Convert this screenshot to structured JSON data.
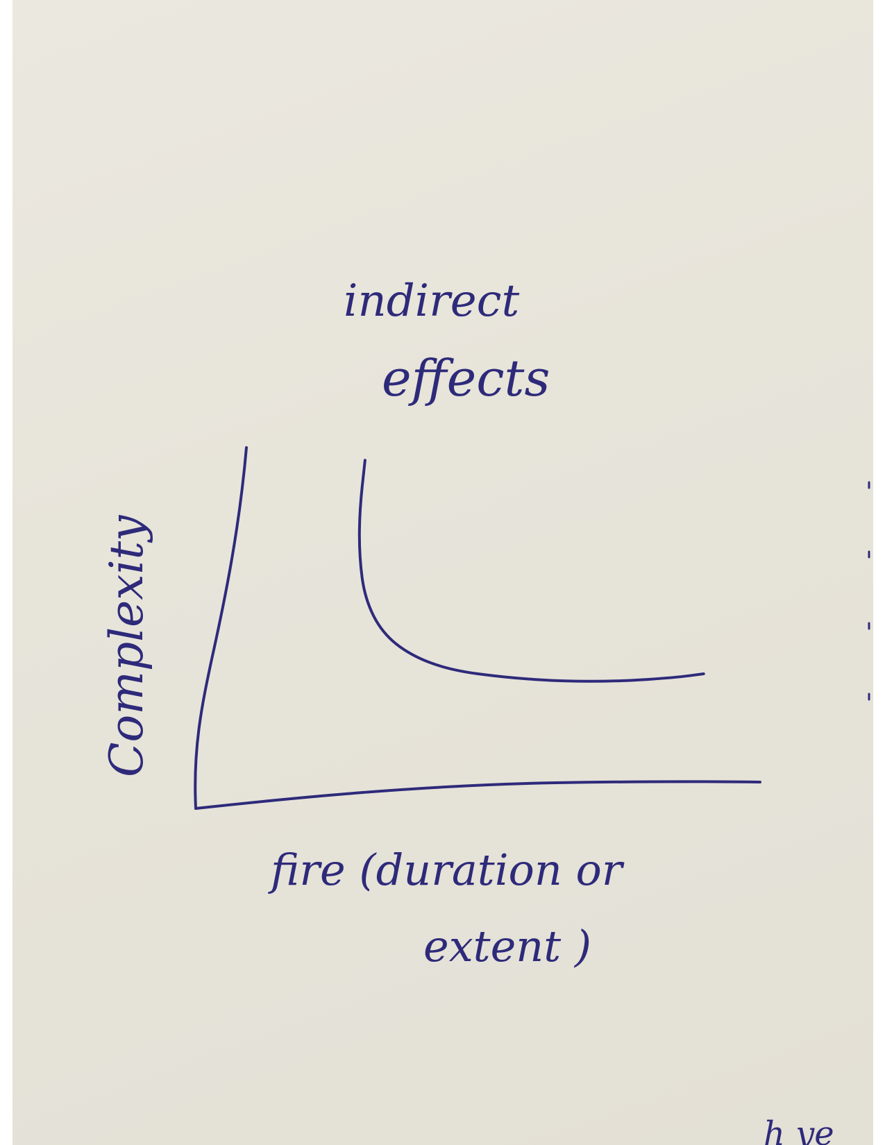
{
  "colors": {
    "paper": "#e8e5dc",
    "ink": "#2e2a7a",
    "border": "#ffffff"
  },
  "chart_data": {
    "type": "line",
    "title": "indirect effects",
    "xlabel": "fire (duration or extent)",
    "ylabel": "Complexity",
    "grid": false,
    "xlim": [
      0,
      10
    ],
    "ylim": [
      0,
      10
    ],
    "series": [
      {
        "x": [
          3.0,
          2.9,
          2.9,
          3.0,
          3.3,
          3.8,
          4.5,
          5.5,
          6.5,
          7.5,
          8.5,
          9.0
        ],
        "y": [
          9.2,
          7.8,
          6.6,
          5.5,
          4.6,
          4.0,
          3.6,
          3.4,
          3.3,
          3.3,
          3.4,
          3.5
        ]
      }
    ]
  },
  "page": {
    "title_line1": "indirect",
    "title_line2": "effects",
    "xlabel_line1": "fire (duration  or",
    "xlabel_line2": "extent )",
    "ylabel": "Complexity",
    "margin_scribble": "h ye"
  }
}
